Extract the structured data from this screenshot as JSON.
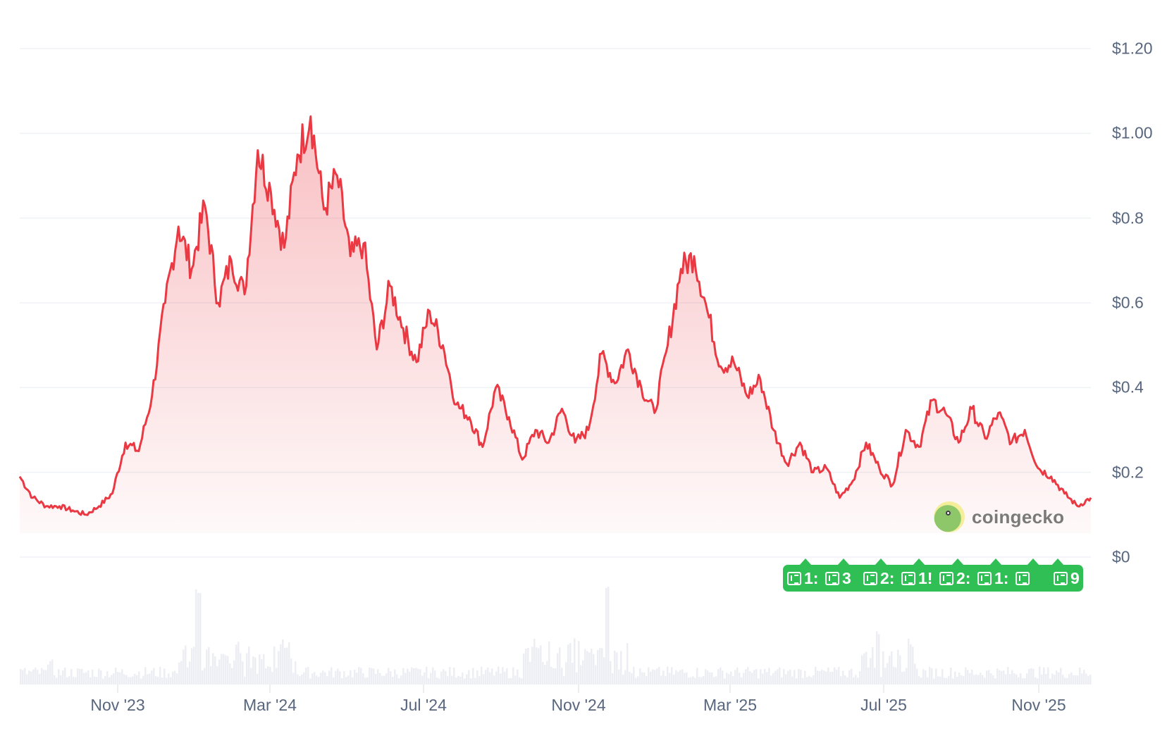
{
  "chart_data": {
    "type": "area",
    "title": "",
    "xlabel": "",
    "ylabel": "",
    "ylim": [
      0,
      1.2
    ],
    "grid": true,
    "legend": null,
    "y_ticks": [
      "$1.20",
      "$1.00",
      "$0.8",
      "$0.6",
      "$0.4",
      "$0.2",
      "$0"
    ],
    "y_tick_values": [
      1.2,
      1.0,
      0.8,
      0.6,
      0.4,
      0.2,
      0
    ],
    "x_ticks": [
      "Nov '23",
      "Mar '24",
      "Jul '24",
      "Nov '24",
      "Mar '25",
      "Jul '25",
      "Nov '25"
    ],
    "series": [
      {
        "name": "Price",
        "color": "#ea3943",
        "points": [
          [
            "Aug '23",
            0.19
          ],
          [
            "Sep '23",
            0.14
          ],
          [
            "Oct '23",
            0.12
          ],
          [
            "Nov '23",
            0.12
          ],
          [
            "Nov '23",
            0.11
          ],
          [
            "Dec '23",
            0.1
          ],
          [
            "Dec '23",
            0.12
          ],
          [
            "Jan '24",
            0.15
          ],
          [
            "Jan '24",
            0.27
          ],
          [
            "Jan '24",
            0.25
          ],
          [
            "Feb '24",
            0.38
          ],
          [
            "Feb '24",
            0.6
          ],
          [
            "Feb '24",
            0.78
          ],
          [
            "Feb '24",
            0.68
          ],
          [
            "Feb '24",
            0.83
          ],
          [
            "Feb '24",
            0.6
          ],
          [
            "Feb '24",
            0.7
          ],
          [
            "Mar '24",
            0.62
          ],
          [
            "Mar '24",
            0.96
          ],
          [
            "Mar '24",
            0.86
          ],
          [
            "Mar '24",
            0.73
          ],
          [
            "Mar '24",
            0.95
          ],
          [
            "Mar '24",
            1.04
          ],
          [
            "Apr '24",
            0.82
          ],
          [
            "Apr '24",
            0.9
          ],
          [
            "Apr '24",
            0.71
          ],
          [
            "Apr '24",
            0.74
          ],
          [
            "Apr '24",
            0.49
          ],
          [
            "May '24",
            0.64
          ],
          [
            "May '24",
            0.54
          ],
          [
            "May '24",
            0.46
          ],
          [
            "May '24",
            0.58
          ],
          [
            "Jun '24",
            0.5
          ],
          [
            "Jun '24",
            0.36
          ],
          [
            "Jun '24",
            0.33
          ],
          [
            "Jul '24",
            0.26
          ],
          [
            "Jul '24",
            0.4
          ],
          [
            "Jul '24",
            0.33
          ],
          [
            "Aug '24",
            0.23
          ],
          [
            "Aug '24",
            0.3
          ],
          [
            "Aug '24",
            0.27
          ],
          [
            "Sep '24",
            0.35
          ],
          [
            "Sep '24",
            0.27
          ],
          [
            "Sep '24",
            0.3
          ],
          [
            "Oct '24",
            0.48
          ],
          [
            "Oct '24",
            0.41
          ],
          [
            "Oct '24",
            0.49
          ],
          [
            "Nov '24",
            0.4
          ],
          [
            "Nov '24",
            0.34
          ],
          [
            "Nov '24",
            0.5
          ],
          [
            "Dec '24",
            0.68
          ],
          [
            "Dec '24",
            0.71
          ],
          [
            "Dec '24",
            0.58
          ],
          [
            "Dec '24",
            0.45
          ],
          [
            "Jan '25",
            0.46
          ],
          [
            "Jan '25",
            0.38
          ],
          [
            "Jan '25",
            0.42
          ],
          [
            "Feb '25",
            0.3
          ],
          [
            "Feb '25",
            0.22
          ],
          [
            "Mar '25",
            0.27
          ],
          [
            "Mar '25",
            0.2
          ],
          [
            "Mar '25",
            0.21
          ],
          [
            "Apr '25",
            0.14
          ],
          [
            "Apr '25",
            0.18
          ],
          [
            "May '25",
            0.27
          ],
          [
            "May '25",
            0.21
          ],
          [
            "Jun '25",
            0.17
          ],
          [
            "Jun '25",
            0.3
          ],
          [
            "Jul '25",
            0.26
          ],
          [
            "Jul '25",
            0.37
          ],
          [
            "Jul '25",
            0.34
          ],
          [
            "Aug '25",
            0.27
          ],
          [
            "Aug '25",
            0.35
          ],
          [
            "Sep '25",
            0.28
          ],
          [
            "Sep '25",
            0.34
          ],
          [
            "Oct '25",
            0.27
          ],
          [
            "Oct '25",
            0.3
          ],
          [
            "Oct '25",
            0.21
          ],
          [
            "Nov '25",
            0.19
          ],
          [
            "Nov '25",
            0.15
          ],
          [
            "Dec '25",
            0.12
          ],
          [
            "Dec '25",
            0.14
          ]
        ]
      },
      {
        "name": "Volume",
        "color": "#e8e8ef",
        "note": "Relative trading volume bars along bottom; spikes around Feb-Mar '24, Dec '24, Jul '25"
      }
    ]
  },
  "watermark": {
    "brand": "coingecko"
  },
  "news_bar": {
    "color": "#2fbf55",
    "items": [
      {
        "label": "1:"
      },
      {
        "label": "3"
      },
      {
        "label": "2:"
      },
      {
        "label": "1!"
      },
      {
        "label": "2:"
      },
      {
        "label": "1:"
      },
      {
        "label": ""
      },
      {
        "label": "9"
      }
    ]
  }
}
